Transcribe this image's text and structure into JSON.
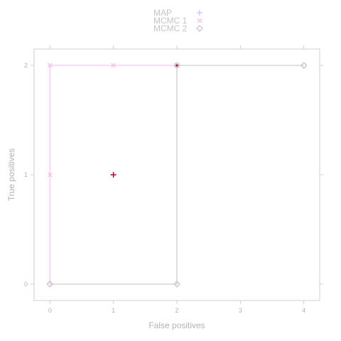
{
  "chart_data": {
    "type": "scatter",
    "title": "",
    "xlabel": "False positives",
    "ylabel": "True positives",
    "xlim": [
      -0.25,
      4.25
    ],
    "ylim": [
      -0.15,
      2.15
    ],
    "x_ticks": [
      0,
      1,
      2,
      3,
      4
    ],
    "y_ticks": [
      0,
      1,
      2
    ],
    "grid": false,
    "legend_position": "top-center",
    "series": [
      {
        "name": "MAP",
        "marker": "plus",
        "color": "#c8d2f2",
        "points": [
          [
            1,
            1
          ]
        ],
        "step_line": false
      },
      {
        "name": "MCMC 1",
        "marker": "x",
        "color": "#f3c4f0",
        "points": [
          [
            0,
            1
          ],
          [
            0,
            2
          ],
          [
            1,
            2
          ],
          [
            2,
            2
          ]
        ],
        "step_line": true,
        "line_path": [
          [
            0,
            0
          ],
          [
            0,
            2
          ],
          [
            2,
            2
          ]
        ]
      },
      {
        "name": "MCMC 2",
        "marker": "diamond",
        "color": "#c9c9c9",
        "points": [
          [
            0,
            0
          ],
          [
            2,
            0
          ],
          [
            2,
            2
          ],
          [
            4,
            2
          ]
        ],
        "step_line": true,
        "line_path": [
          [
            0,
            0
          ],
          [
            2,
            0
          ],
          [
            2,
            2
          ],
          [
            4,
            2
          ]
        ]
      }
    ],
    "overlap_markers": [
      {
        "x": 1,
        "y": 1,
        "marker": "plus",
        "color": "#a8103c"
      },
      {
        "x": 2,
        "y": 2,
        "marker": "dot",
        "color": "#a8103c"
      }
    ]
  }
}
